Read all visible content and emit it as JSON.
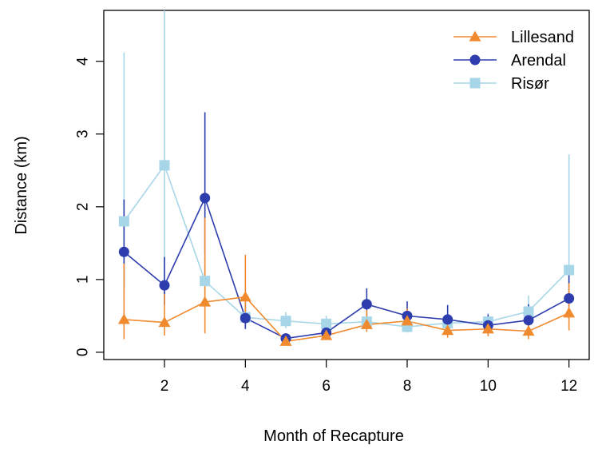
{
  "chart_data": {
    "type": "line",
    "xlabel": "Month of Recapture",
    "ylabel": "Distance (km)",
    "xlim": [
      0.5,
      12.5
    ],
    "ylim": [
      -0.1,
      4.7
    ],
    "x_ticks": [
      2,
      4,
      6,
      8,
      10,
      12
    ],
    "y_ticks": [
      0,
      1,
      2,
      3,
      4
    ],
    "x": [
      1,
      2,
      3,
      4,
      5,
      6,
      7,
      8,
      9,
      10,
      11,
      12
    ],
    "grid": false,
    "legend_position": "top-right",
    "series": [
      {
        "name": "Lillesand",
        "color": "#F08A2F",
        "marker": "triangle",
        "values": [
          0.45,
          0.41,
          0.69,
          0.76,
          0.15,
          0.23,
          0.38,
          0.43,
          0.3,
          0.32,
          0.29,
          0.54
        ],
        "lower": [
          0.18,
          0.23,
          0.26,
          0.45,
          0.11,
          0.18,
          0.28,
          0.33,
          0.2,
          0.22,
          0.18,
          0.3
        ],
        "upper": [
          1.22,
          0.8,
          1.85,
          1.34,
          0.22,
          0.32,
          0.58,
          0.6,
          0.45,
          0.48,
          0.45,
          0.95
        ]
      },
      {
        "name": "Arendal",
        "color": "#2D3DAE",
        "marker": "circle",
        "values": [
          1.38,
          0.92,
          2.12,
          0.47,
          0.19,
          0.27,
          0.66,
          0.5,
          0.45,
          0.37,
          0.44,
          0.74
        ],
        "lower": [
          0.9,
          0.65,
          1.35,
          0.32,
          0.13,
          0.19,
          0.42,
          0.34,
          0.29,
          0.24,
          0.27,
          0.46
        ],
        "upper": [
          2.1,
          1.31,
          3.3,
          0.7,
          0.26,
          0.37,
          0.88,
          0.7,
          0.65,
          0.52,
          0.66,
          1.18
        ]
      },
      {
        "name": "Risør",
        "color": "#A7D6E8",
        "marker": "square",
        "values": [
          1.8,
          2.57,
          0.98,
          0.48,
          0.43,
          0.39,
          0.42,
          0.35,
          0.4,
          0.42,
          0.56,
          1.13
        ],
        "lower": [
          0.78,
          0.65,
          0.7,
          0.36,
          0.33,
          0.31,
          0.33,
          0.27,
          0.31,
          0.32,
          0.4,
          0.7
        ],
        "upper": [
          4.12,
          4.7,
          1.36,
          0.62,
          0.55,
          0.5,
          0.54,
          0.45,
          0.52,
          0.54,
          0.78,
          2.72
        ]
      }
    ]
  }
}
